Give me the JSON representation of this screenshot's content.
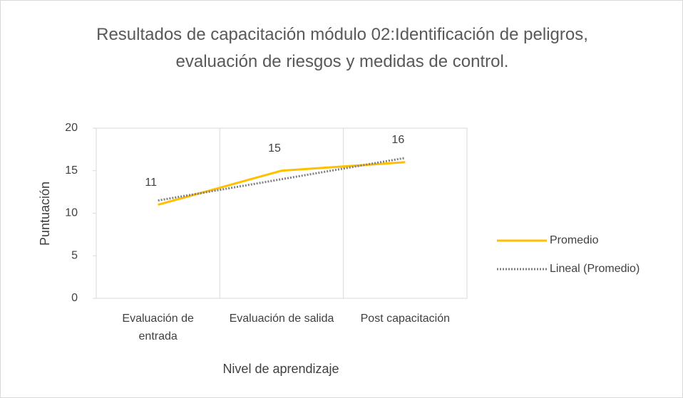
{
  "chart_data": {
    "type": "line",
    "title": "Resultados de capacitación módulo 02:Identificación de peligros, evaluación de riesgos y medidas de control.",
    "x_label": "Nivel de aprendizaje",
    "y_label": "Puntuación",
    "categories": [
      "Evaluación de entrada",
      "Evaluación de salida",
      "Post capacitación"
    ],
    "series": [
      {
        "name": "Promedio",
        "color": "#ffc000",
        "dash": "solid",
        "data_labels": true,
        "values": [
          11,
          15,
          16
        ]
      },
      {
        "name": "Lineal (Promedio)",
        "color": "#7f7f7f",
        "dash": "dotted",
        "data_labels": false,
        "values": [
          11.5,
          14,
          16.5
        ]
      }
    ],
    "ylim": [
      0,
      20
    ],
    "yticks": [
      0,
      5,
      10,
      15,
      20
    ],
    "legend": "right"
  }
}
